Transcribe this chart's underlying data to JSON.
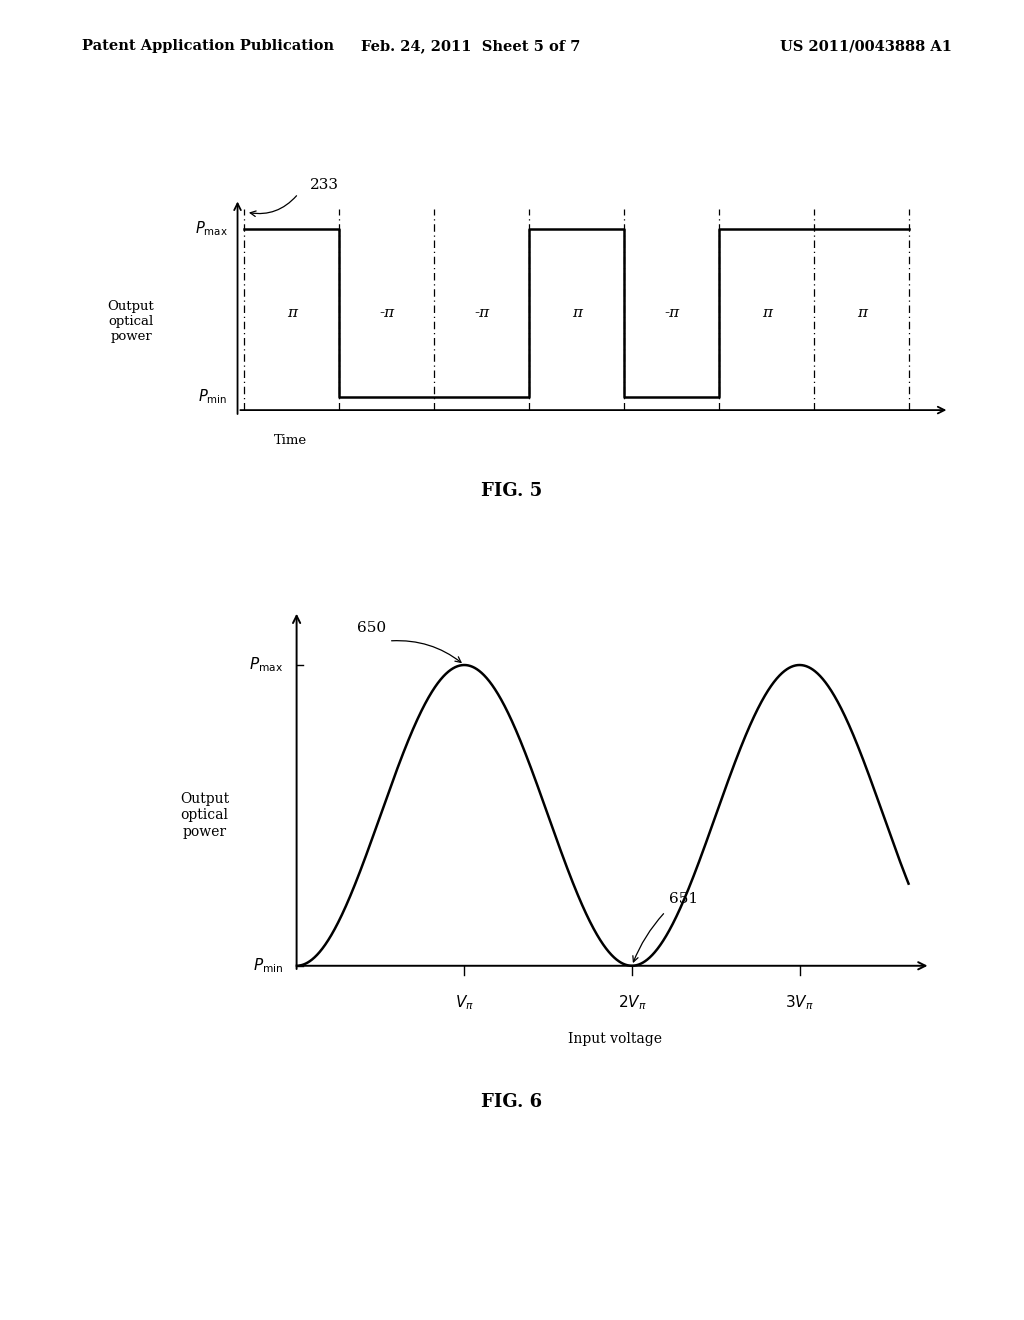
{
  "bg_color": "#ffffff",
  "header_left": "Patent Application Publication",
  "header_center": "Feb. 24, 2011  Sheet 5 of 7",
  "header_right": "US 2011/0043888 A1",
  "fig5_label": "FIG. 5",
  "fig6_label": "FIG. 6",
  "fig5_label233": "233",
  "fig5_label_pmax": "$P_{\\mathrm{max}}$",
  "fig5_label_pmin": "$P_{\\mathrm{min}}$",
  "fig5_xlabel": "Time",
  "fig5_phases": [
    "π",
    "-π",
    "-π",
    "π",
    "-π",
    "π",
    "π"
  ],
  "fig5_high": 1.0,
  "fig5_low": 0.0,
  "fig6_label650": "650",
  "fig6_label651": "651",
  "fig6_label_pmax": "$P_{\\mathrm{max}}$",
  "fig6_label_pmin": "$P_{\\mathrm{min}}$",
  "fig6_xlabel": "Input voltage",
  "fig6_xticks": [
    "$V_{\\pi}$",
    "$2V_{\\pi}$",
    "$3V_{\\pi}$"
  ]
}
